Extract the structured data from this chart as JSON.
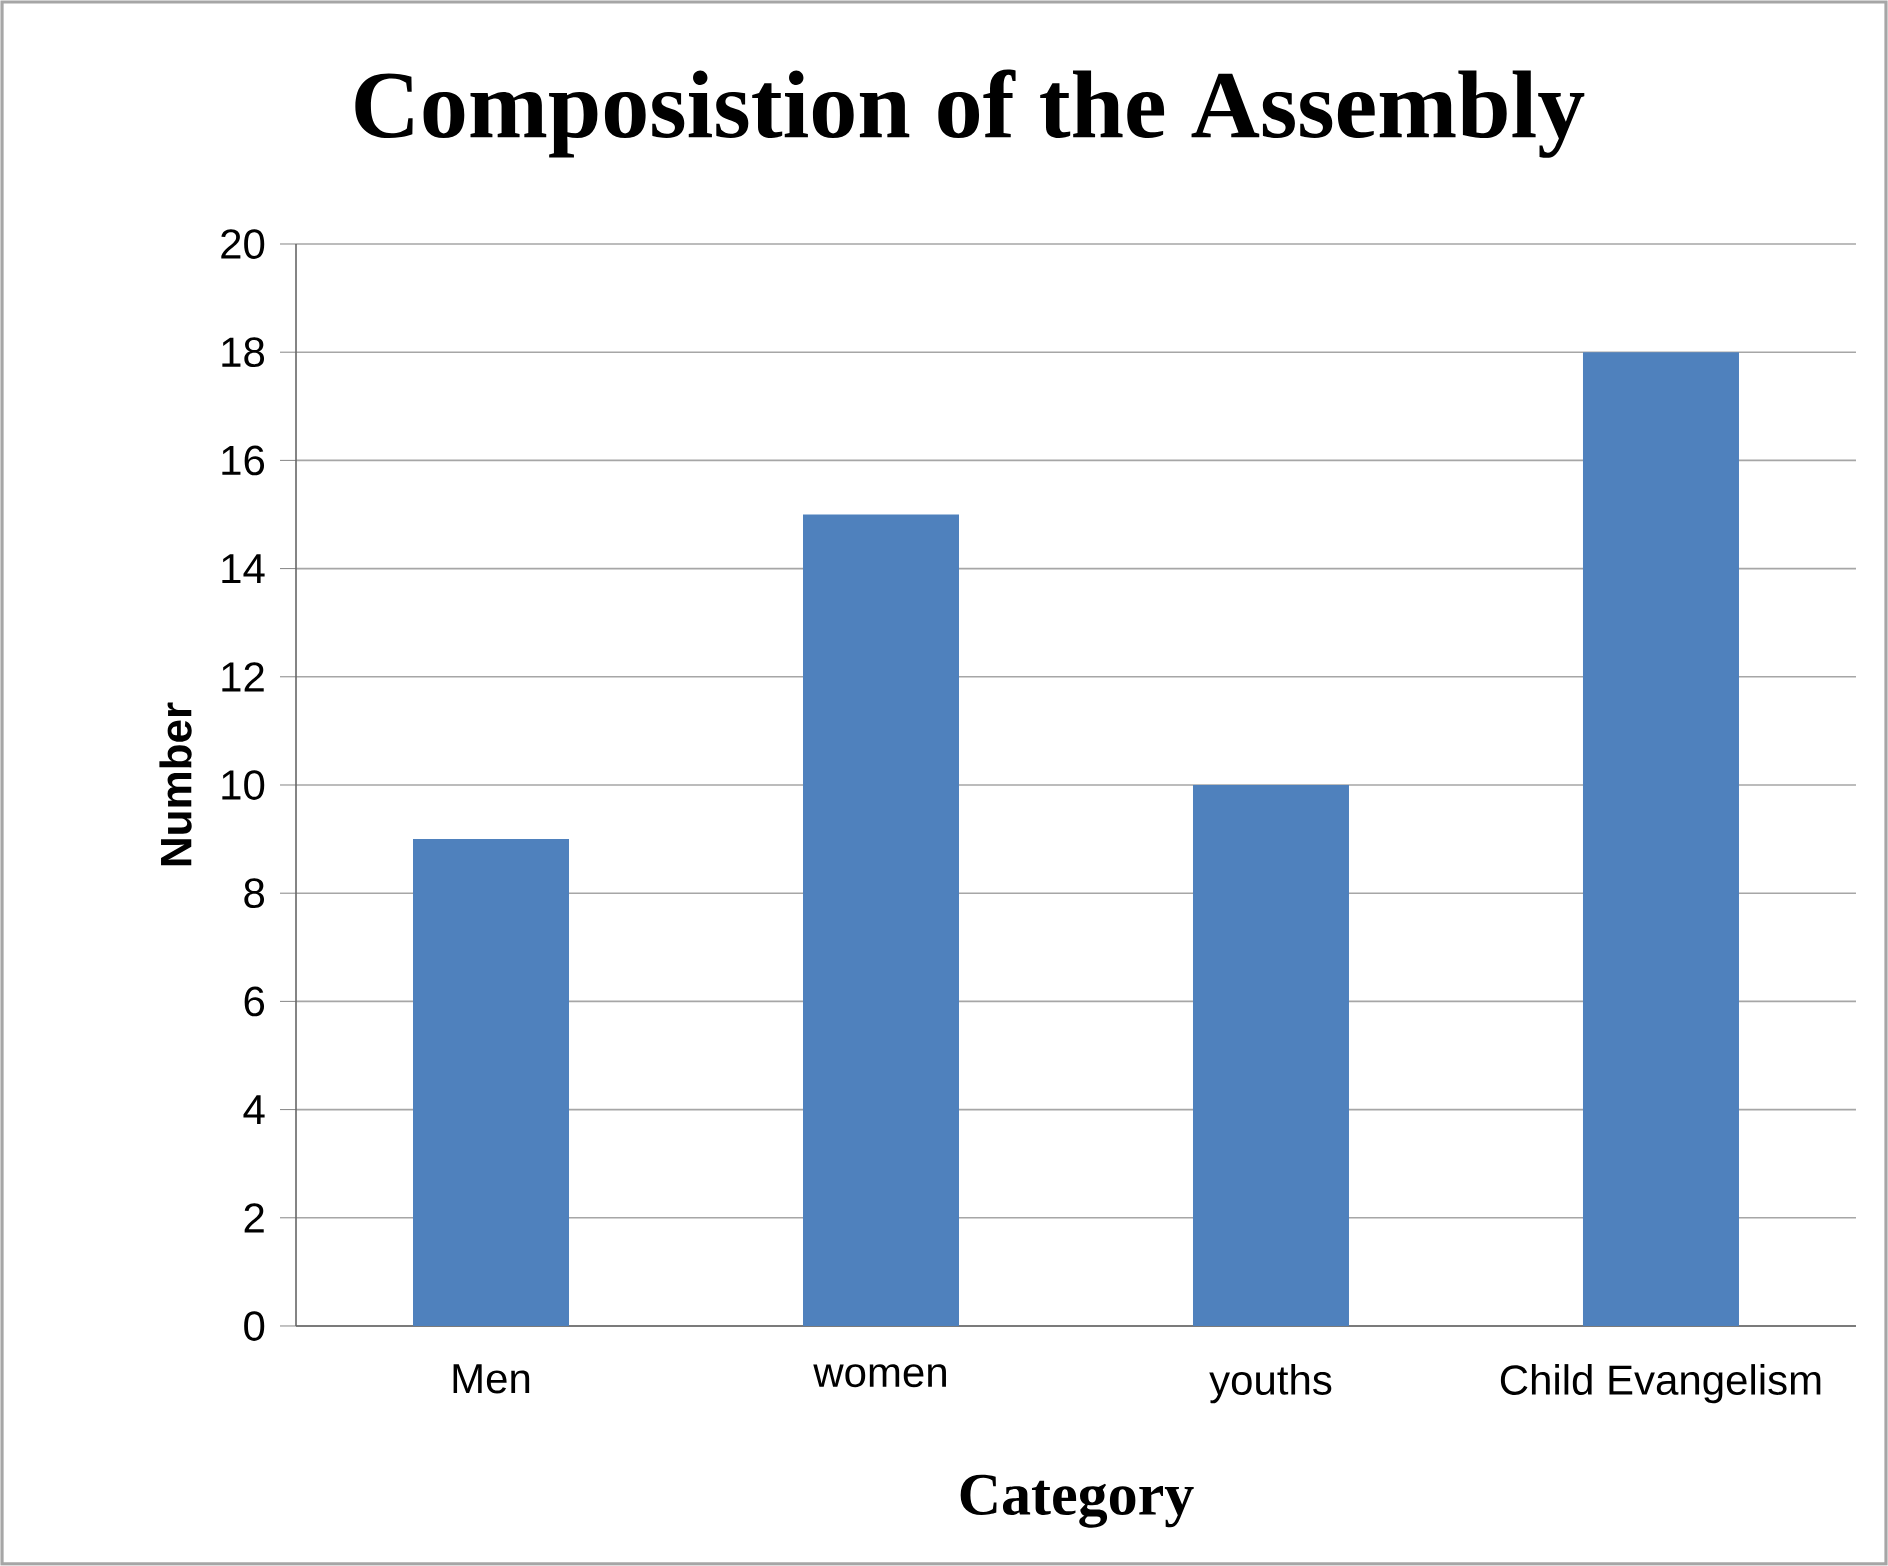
{
  "chart_data": {
    "type": "bar",
    "title": "Composistion of the Assembly",
    "xlabel": "Category",
    "ylabel": "Number",
    "categories": [
      "Men",
      "women",
      "youths",
      "Child Evangelism"
    ],
    "values": [
      9,
      15,
      10,
      18
    ],
    "color": "#4f81bd",
    "ylim": [
      0,
      20
    ],
    "yticks": [
      0,
      2,
      4,
      6,
      8,
      10,
      12,
      14,
      16,
      18,
      20
    ],
    "grid": "y"
  }
}
